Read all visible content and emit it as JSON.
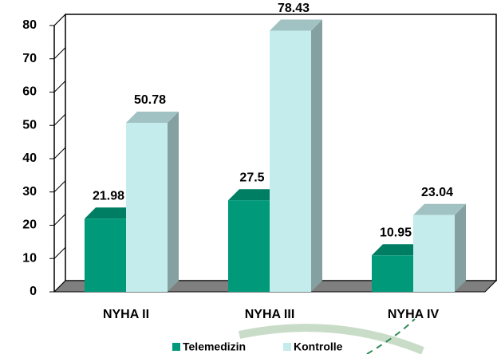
{
  "chart_data": {
    "type": "bar3d",
    "categories": [
      "NYHA II",
      "NYHA III",
      "NYHA IV"
    ],
    "series": [
      {
        "name": "Telemedizin",
        "color": "#009a7a",
        "values": [
          21.98,
          27.5,
          10.95
        ]
      },
      {
        "name": "Kontrolle",
        "color": "#c4ecec",
        "values": [
          50.78,
          78.43,
          23.04
        ]
      }
    ],
    "ylim": [
      0,
      80
    ],
    "yticks": [
      0,
      10,
      20,
      30,
      40,
      50,
      60,
      70,
      80
    ],
    "grid": false,
    "legend": "bottom"
  }
}
